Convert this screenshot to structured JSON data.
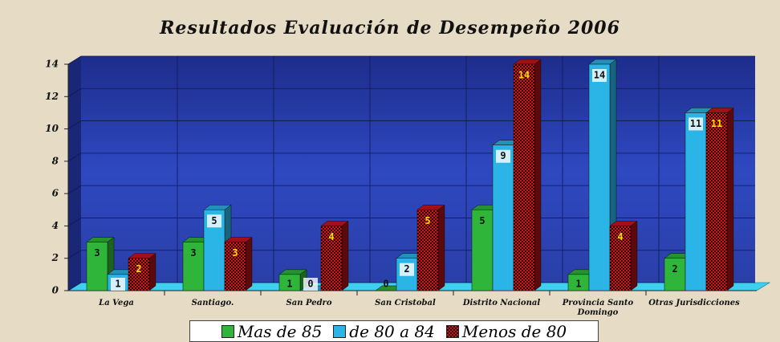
{
  "chart_data": {
    "type": "bar3d",
    "title": "Resultados Evaluación de Desempeño 2006",
    "categories": [
      "La Vega",
      "Santiago.",
      "San Pedro",
      "San Cristobal",
      "Distrito Nacional",
      "Provincia Santo Domingo",
      "Otras Jurisdicciones"
    ],
    "series": [
      {
        "name": "Mas de 85",
        "color": "#2fb53a",
        "values": [
          3,
          3,
          1,
          0,
          5,
          1,
          2
        ]
      },
      {
        "name": "de 80 a 84",
        "color": "#2bb4e6",
        "values": [
          1,
          5,
          0,
          2,
          9,
          14,
          11
        ]
      },
      {
        "name": "Menos de 80",
        "color": "#c8141a",
        "fill_pattern": "checker",
        "values": [
          2,
          3,
          4,
          5,
          14,
          4,
          11
        ]
      }
    ],
    "ylim": [
      0,
      14
    ],
    "yticks": [
      0,
      2,
      4,
      6,
      8,
      10,
      12,
      14
    ],
    "grid": true,
    "legend": "bottom"
  }
}
